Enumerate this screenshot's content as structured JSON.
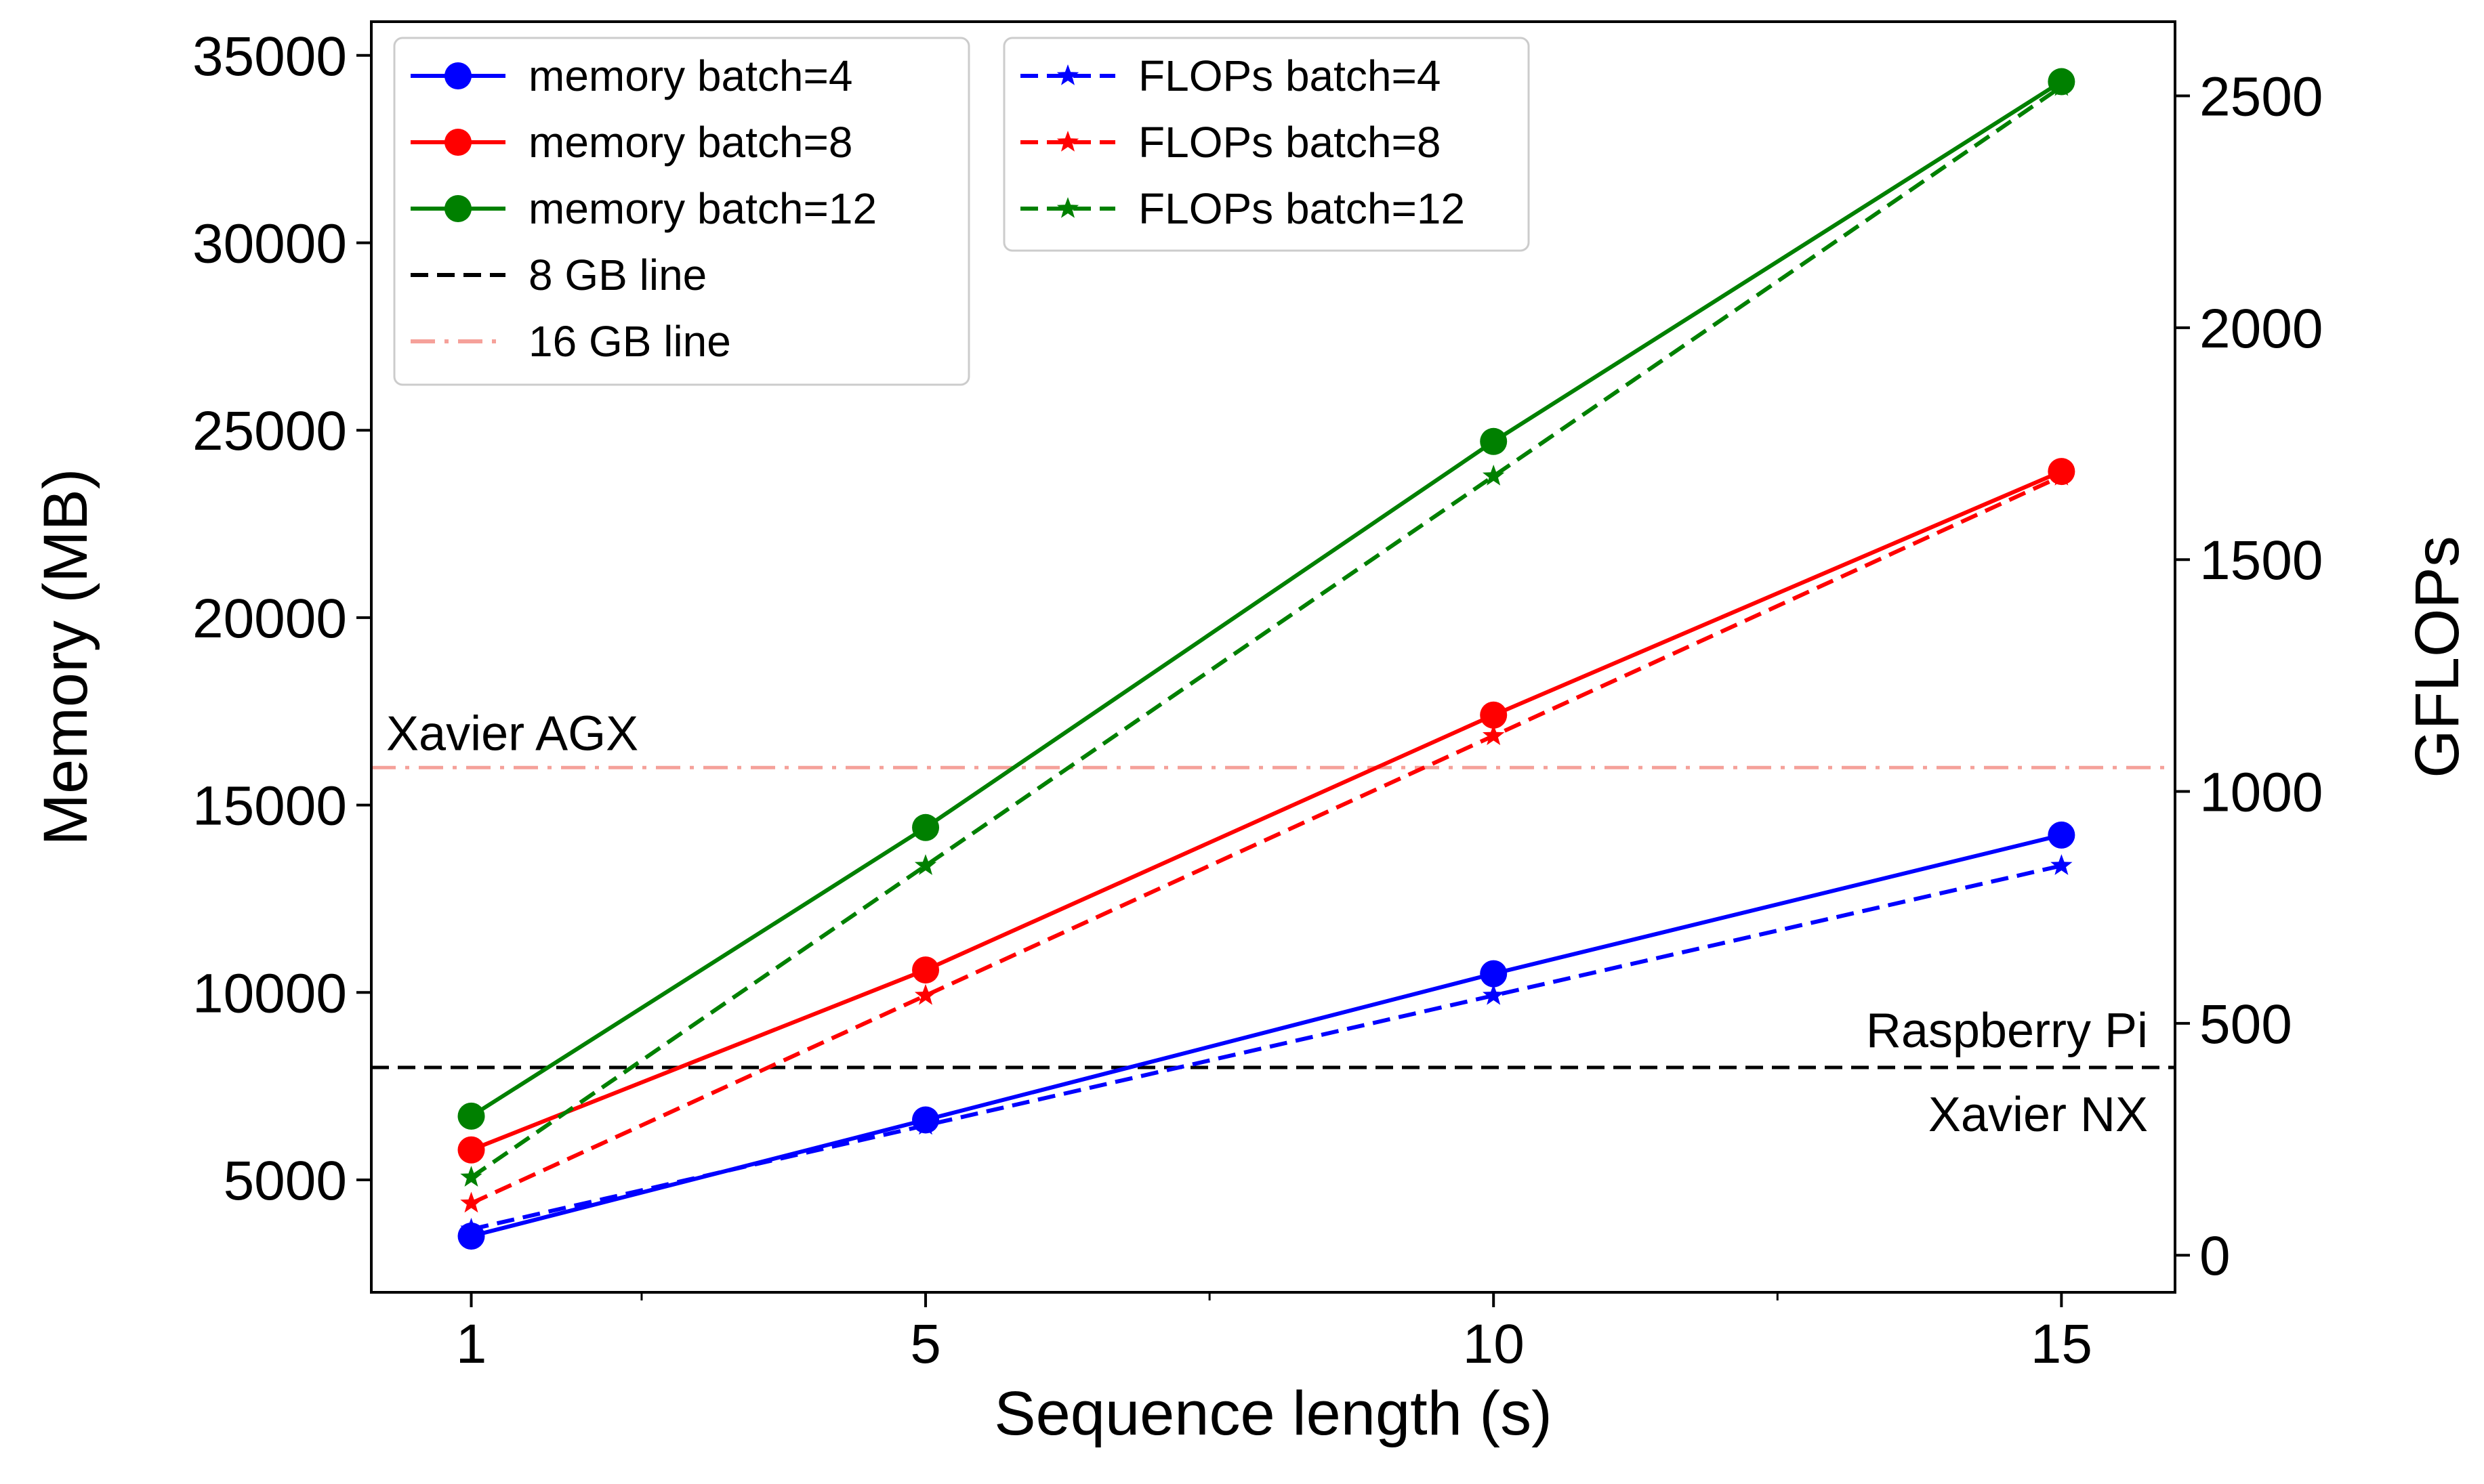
{
  "chart_data": {
    "type": "line",
    "xlabel": "Sequence length (s)",
    "ylabel_left": "Memory (MB)",
    "ylabel_right": "GFLOPs",
    "x": [
      1,
      5,
      10,
      15
    ],
    "x_ticks": [
      "1",
      "5",
      "10",
      "15"
    ],
    "x_minor_ticks": [
      2.5,
      7.5,
      12.5
    ],
    "xlim": [
      0.12,
      16.0
    ],
    "ylim_left": [
      2000,
      35900
    ],
    "ylim_right": [
      -80,
      2660
    ],
    "y_ticks_left": [
      "5000",
      "10000",
      "15000",
      "20000",
      "25000",
      "30000",
      "35000"
    ],
    "y_ticks_right": [
      "0",
      "500",
      "1000",
      "1500",
      "2000",
      "2500"
    ],
    "grid": false,
    "series": [
      {
        "name": "memory batch=4",
        "axis": "left",
        "color": "#0000ff",
        "linestyle": "solid",
        "marker": "circle",
        "values": [
          3500,
          6600,
          10500,
          14200
        ]
      },
      {
        "name": "memory batch=8",
        "axis": "left",
        "color": "#ff0000",
        "linestyle": "solid",
        "marker": "circle",
        "values": [
          5800,
          10600,
          17400,
          23900
        ]
      },
      {
        "name": "memory batch=12",
        "axis": "left",
        "color": "#008000",
        "linestyle": "solid",
        "marker": "circle",
        "values": [
          6700,
          14400,
          24700,
          34300
        ]
      },
      {
        "name": "FLOPs batch=4",
        "axis": "right",
        "color": "#0000ff",
        "linestyle": "dashed",
        "marker": "star",
        "values": [
          56,
          280,
          560,
          840
        ]
      },
      {
        "name": "FLOPs batch=8",
        "axis": "right",
        "color": "#ff0000",
        "linestyle": "dashed",
        "marker": "star",
        "values": [
          112,
          560,
          1120,
          1680
        ]
      },
      {
        "name": "FLOPs batch=12",
        "axis": "right",
        "color": "#008000",
        "linestyle": "dashed",
        "marker": "star",
        "values": [
          168,
          840,
          1680,
          2520
        ]
      }
    ],
    "reference_lines": [
      {
        "name": "8 GB line",
        "axis": "left",
        "y": 8000,
        "color": "#000000",
        "linestyle": "dashed"
      },
      {
        "name": "16 GB line",
        "axis": "left",
        "y": 16000,
        "color": "#f5a19a",
        "linestyle": "dashdot"
      }
    ],
    "annotations": [
      {
        "text": "Xavier AGX",
        "near": "16 GB line",
        "position": "above-left"
      },
      {
        "text": "Raspberry Pi",
        "near": "8 GB line",
        "position": "above-right"
      },
      {
        "text": "Xavier NX",
        "near": "8 GB line",
        "position": "below-right"
      }
    ],
    "legends": [
      {
        "placement": "top-left",
        "entries": [
          "memory batch=4",
          "memory batch=8",
          "memory batch=12",
          "8 GB line",
          "16 GB line"
        ]
      },
      {
        "placement": "top-center",
        "entries": [
          "FLOPs batch=4",
          "FLOPs batch=8",
          "FLOPs batch=12"
        ]
      }
    ]
  }
}
